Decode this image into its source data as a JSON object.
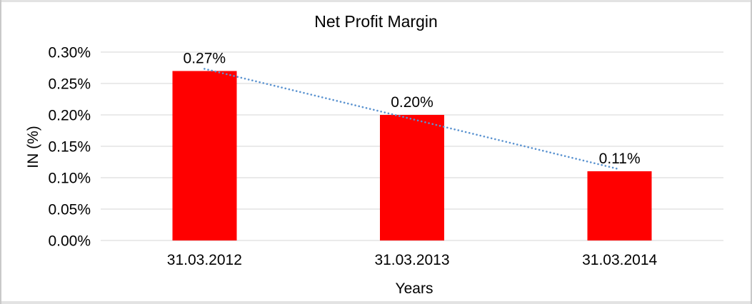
{
  "chart_data": {
    "type": "bar",
    "title": "Net Profit Margin",
    "xlabel": "Years",
    "ylabel": "IN (%)",
    "categories": [
      "31.03.2012",
      "31.03.2013",
      "31.03.2014"
    ],
    "values": [
      0.27,
      0.2,
      0.11
    ],
    "data_labels": [
      "0.27%",
      "0.20%",
      "0.11%"
    ],
    "ylim": [
      0,
      0.3
    ],
    "ytick_step": 0.05,
    "ytick_labels": [
      "0.00%",
      "0.05%",
      "0.10%",
      "0.15%",
      "0.20%",
      "0.25%",
      "0.30%"
    ],
    "grid": true,
    "legend": false,
    "trendline": {
      "type": "linear",
      "style": "dotted"
    },
    "colors": {
      "bar": "#ff0000",
      "trendline": "#5b93d0",
      "gridline": "#d6d6d6",
      "text": "#000000",
      "frame_border": "#c9c9c9"
    }
  }
}
